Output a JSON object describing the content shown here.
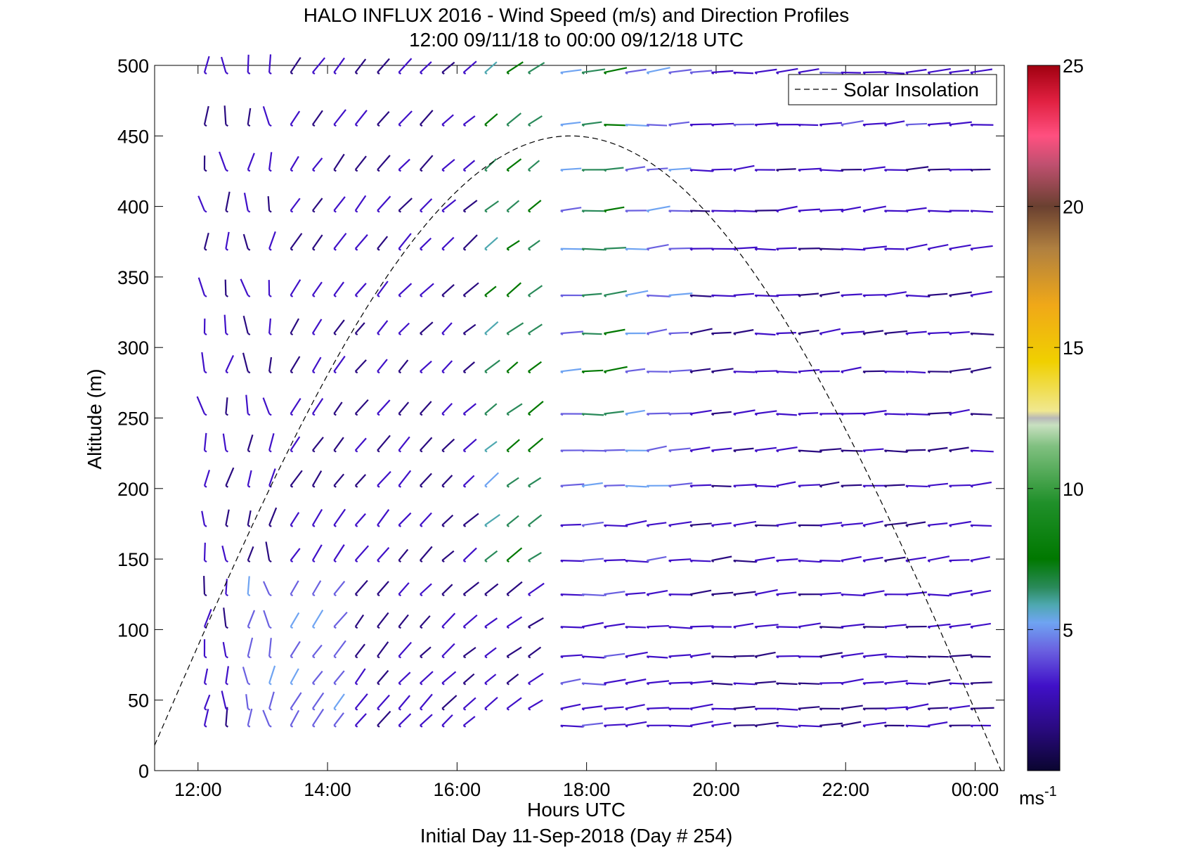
{
  "chart_data": {
    "type": "wind_barb_profile",
    "title": "HALO INFLUX 2016 - Wind Speed (m/s) and Direction Profiles",
    "subtitle": "12:00 09/11/18 to 00:00 09/12/18  UTC",
    "xlabel": "Hours UTC",
    "xlabel2": "Initial Day 11-Sep-2018 (Day # 254)",
    "ylabel": "Altitude (m)",
    "xlim_hours": [
      11.33,
      24.45
    ],
    "ylim": [
      0,
      500
    ],
    "x_ticks": [
      {
        "value": 12,
        "label": "12:00"
      },
      {
        "value": 14,
        "label": "14:00"
      },
      {
        "value": 16,
        "label": "16:00"
      },
      {
        "value": 18,
        "label": "18:00"
      },
      {
        "value": 20,
        "label": "20:00"
      },
      {
        "value": 22,
        "label": "22:00"
      },
      {
        "value": 24,
        "label": "00:00"
      }
    ],
    "y_ticks": [
      0,
      50,
      100,
      150,
      200,
      250,
      300,
      350,
      400,
      450,
      500
    ],
    "legend": {
      "position": "top-right",
      "entries": [
        "Solar Insolation"
      ]
    },
    "solar_insolation": {
      "peak_hour": 17.75,
      "peak_altitude": 450,
      "start_hour": 11.33,
      "start_altitude": 18,
      "end_hour": 24.4,
      "end_altitude": 0
    },
    "colorbar": {
      "min": 0,
      "max": 25,
      "ticks": [
        5,
        10,
        15,
        20,
        25
      ],
      "unit_label": "ms",
      "unit_exponent": "-1"
    },
    "barbs_rows_1": {
      "hours_early": [
        12.1,
        12.43,
        12.77,
        13.1,
        13.43,
        13.77,
        14.1,
        14.43,
        14.77,
        15.1,
        15.43,
        15.77,
        16.1,
        16.43,
        16.77,
        17.1
      ],
      "altitudes": [
        32,
        44,
        62,
        81,
        102,
        125,
        149,
        174,
        202,
        227,
        253,
        283,
        310,
        337,
        370,
        397,
        426,
        458,
        495
      ],
      "hours_late": [
        17.6,
        17.93,
        18.27,
        18.6,
        18.93,
        19.27,
        19.6,
        19.93,
        20.27,
        20.6,
        20.93,
        21.27,
        21.6,
        21.93,
        22.27,
        22.6,
        22.93,
        23.27,
        23.6,
        23.93
      ]
    },
    "wind_speed_ms": {
      "description_ranges": "low ~2-3 m/s in morning, 4-6 near surface midday, up to ~8 m/s aloft 17-18 UTC, ~3-4 m/s evening"
    }
  }
}
